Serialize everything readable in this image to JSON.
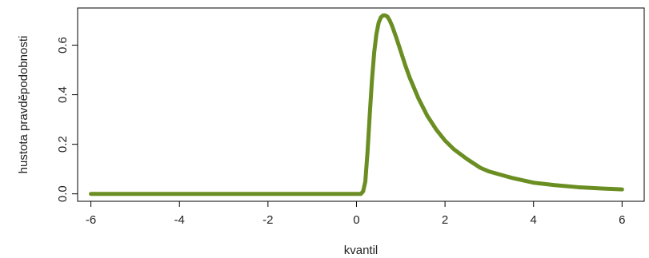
{
  "chart_data": {
    "type": "line",
    "title": "",
    "xlabel": "kvantil",
    "ylabel": "hustota pravděpodobnosti",
    "xlim": [
      -6.3,
      6.5
    ],
    "ylim": [
      -0.03,
      0.75
    ],
    "x_ticks": [
      -6,
      -4,
      -2,
      0,
      2,
      4,
      6
    ],
    "y_ticks": [
      0.0,
      0.2,
      0.4,
      0.6
    ],
    "x_tick_labels": [
      "-6",
      "-4",
      "-2",
      "0",
      "2",
      "4",
      "6"
    ],
    "y_tick_labels": [
      "0.0",
      "0.2",
      "0.4",
      "0.6"
    ],
    "grid": false,
    "line_color": "#6b8e23",
    "series": [
      {
        "x": [
          -6,
          -5,
          -4,
          -3,
          -2,
          -1,
          0,
          0.1,
          0.15,
          0.2,
          0.25,
          0.3,
          0.35,
          0.4,
          0.45,
          0.5,
          0.55,
          0.6,
          0.65,
          0.7,
          0.75,
          0.8,
          0.9,
          1.0,
          1.1,
          1.2,
          1.4,
          1.6,
          1.8,
          2.0,
          2.2,
          2.5,
          2.8,
          3.0,
          3.5,
          4.0,
          4.5,
          5.0,
          5.5,
          6.0
        ],
        "y": [
          0,
          0,
          0,
          0,
          0,
          0,
          0,
          0.0,
          0.01,
          0.05,
          0.17,
          0.32,
          0.46,
          0.57,
          0.645,
          0.69,
          0.712,
          0.72,
          0.72,
          0.715,
          0.7,
          0.68,
          0.63,
          0.575,
          0.52,
          0.47,
          0.385,
          0.315,
          0.26,
          0.215,
          0.18,
          0.14,
          0.105,
          0.09,
          0.065,
          0.045,
          0.035,
          0.027,
          0.022,
          0.018
        ]
      }
    ]
  }
}
